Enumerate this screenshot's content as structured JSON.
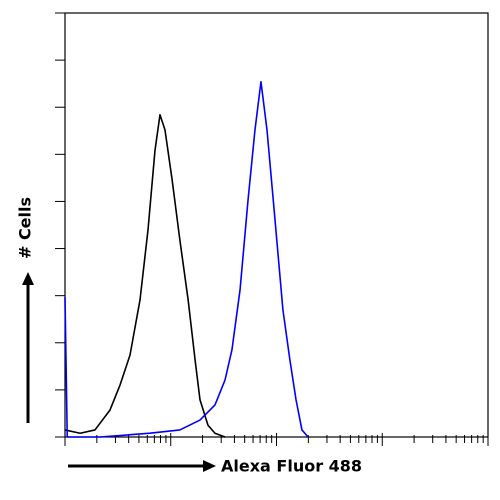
{
  "chart_data": {
    "type": "line",
    "xlabel": "Alexa Fluor 488",
    "ylabel": "# Cells",
    "xscale": "log",
    "xlim": [
      1,
      10000
    ],
    "ylim": [
      0,
      90
    ],
    "xticks": [
      1,
      2,
      3,
      4,
      5,
      6,
      7,
      8,
      9,
      10,
      20,
      30,
      40,
      50,
      60,
      70,
      80,
      90,
      100,
      200,
      300,
      400,
      500,
      600,
      700,
      800,
      900,
      1000,
      2000,
      3000,
      4000,
      5000,
      6000,
      7000,
      8000,
      9000,
      10000
    ],
    "yticks": [
      0,
      10,
      20,
      30,
      40,
      50,
      60,
      70,
      80,
      90
    ],
    "tick_labels": false,
    "series": [
      {
        "color": "#000000",
        "x": [
          1,
          1.39,
          1.92,
          2.66,
          3.31,
          4.12,
          5.12,
          6.09,
          7.1,
          7.91,
          8.82,
          10.3,
          12.2,
          14.6,
          17,
          18.9,
          22.5,
          26.2,
          32.6
        ],
        "values": [
          1.5,
          0.8,
          1.5,
          5.7,
          11,
          17.4,
          29.1,
          43.9,
          60.9,
          68.4,
          65.2,
          54.6,
          41.8,
          29.1,
          16.3,
          7.9,
          2.5,
          0.8,
          0
        ]
      },
      {
        "color": "#0000ff",
        "x": [
          1,
          1.05,
          2.14,
          6.37,
          12.2,
          18.9,
          26.2,
          32.6,
          37.9,
          45.2,
          53.8,
          62.6,
          71.3,
          81.3,
          96.8,
          115,
          134,
          153,
          174,
          199
        ],
        "values": [
          29.7,
          0,
          0,
          0.8,
          1.5,
          3.6,
          6.8,
          12.1,
          18.5,
          31.2,
          50.3,
          65.2,
          75.4,
          65.2,
          46.1,
          27,
          16.3,
          7.9,
          1.5,
          0
        ]
      }
    ]
  }
}
